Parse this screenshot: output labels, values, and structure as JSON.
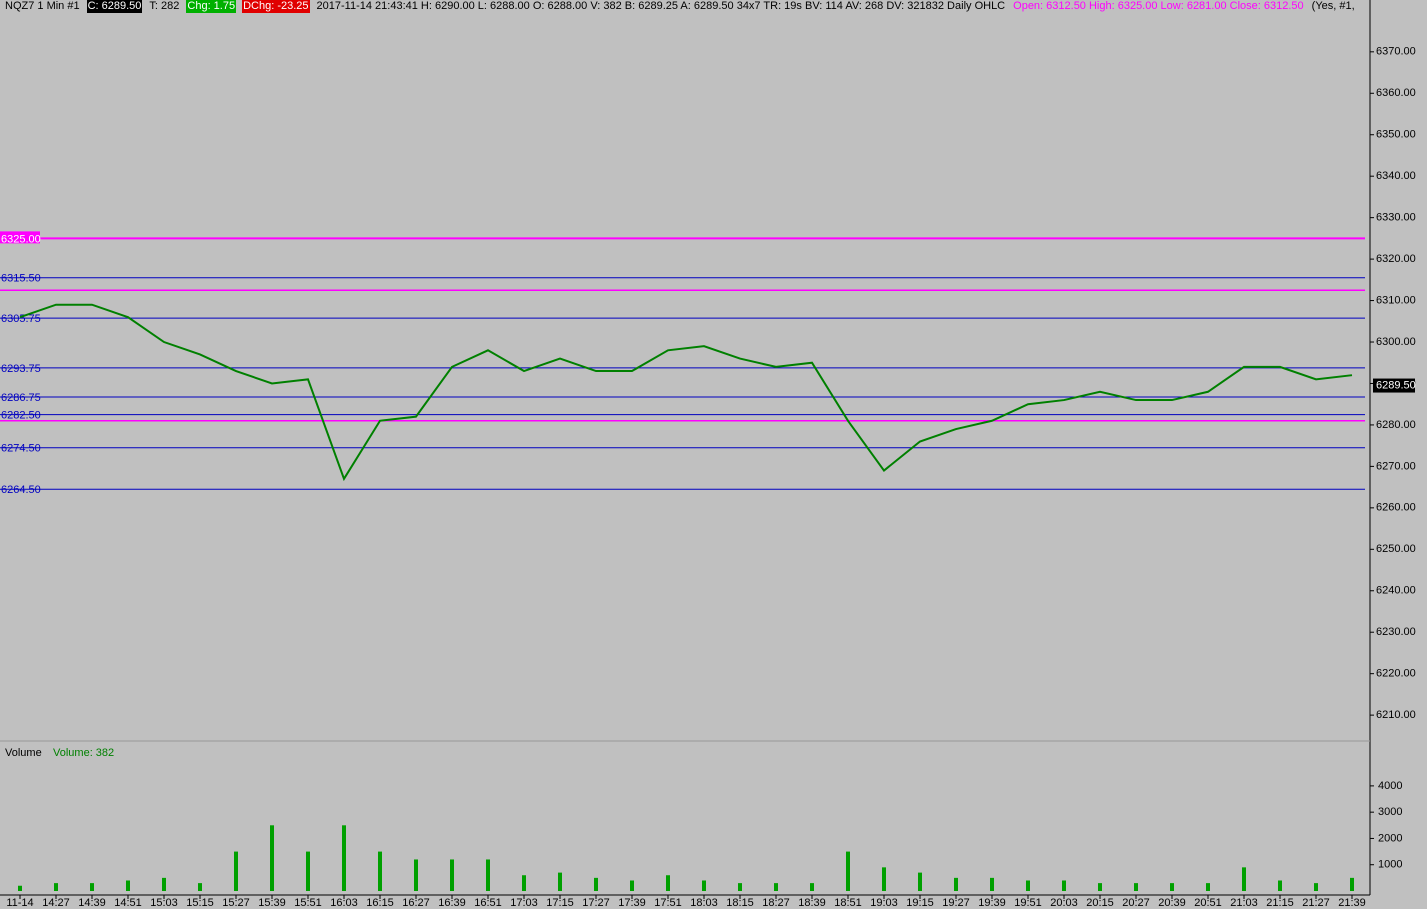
{
  "header": {
    "items": [
      {
        "text": "NQZ7  1 Min  #1",
        "style": "plain"
      },
      {
        "text": "C: 6289.50",
        "style": "black"
      },
      {
        "text": "T: 282",
        "style": "plain"
      },
      {
        "text": "Chg: 1.75",
        "style": "green"
      },
      {
        "text": "DChg: -23.25",
        "style": "red"
      },
      {
        "text": "2017-11-14 21:43:41 H: 6290.00 L: 6288.00 O: 6288.00 V: 382 B: 6289.25 A: 6289.50 34x7 TR: 19s BV: 114 AV: 268 DV: 321832  Daily OHLC",
        "style": "plain"
      },
      {
        "text": "Open: 6312.50  High: 6325.00  Low: 6281.00  Close: 6312.50",
        "style": "magenta"
      },
      {
        "text": "(Yes, #1,",
        "style": "plain"
      }
    ]
  },
  "chart_data": [
    {
      "type": "line",
      "categories": [
        "11-14",
        "14:27",
        "14:39",
        "14:51",
        "15:03",
        "15:15",
        "15:27",
        "15:39",
        "15:51",
        "16:03",
        "16:15",
        "16:27",
        "16:39",
        "16:51",
        "17:03",
        "17:15",
        "17:27",
        "17:39",
        "17:51",
        "18:03",
        "18:15",
        "18:27",
        "18:39",
        "18:51",
        "19:03",
        "19:15",
        "19:27",
        "19:39",
        "19:51",
        "20:03",
        "20:15",
        "20:27",
        "20:39",
        "20:51",
        "21:03",
        "21:15",
        "21:27",
        "21:39"
      ],
      "series": [
        {
          "name": "NQZ7",
          "color": "#008000",
          "values": [
            6306,
            6309,
            6309,
            6306,
            6300,
            6297,
            6293,
            6290,
            6291,
            6267,
            6281,
            6282,
            6294,
            6298,
            6293,
            6296,
            6293,
            6293,
            6298,
            6299,
            6296,
            6294,
            6295,
            6281,
            6269,
            6276,
            6279,
            6281,
            6285,
            6286,
            6288,
            6286,
            6286,
            6288,
            6294,
            6294,
            6291,
            6292
          ]
        }
      ],
      "ylim": [
        6204,
        6382.5
      ],
      "yticks": [
        {
          "value": 6370,
          "label": "6370.00"
        },
        {
          "value": 6360,
          "label": "6360.00"
        },
        {
          "value": 6350,
          "label": "6350.00"
        },
        {
          "value": 6340,
          "label": "6340.00"
        },
        {
          "value": 6330,
          "label": "6330.00"
        },
        {
          "value": 6320,
          "label": "6320.00"
        },
        {
          "value": 6310,
          "label": "6310.00"
        },
        {
          "value": 6300,
          "label": "6300.00"
        },
        {
          "value": 6290,
          "label": "6290.00"
        },
        {
          "value": 6280,
          "label": "6280.00"
        },
        {
          "value": 6270,
          "label": "6270.00"
        },
        {
          "value": 6260,
          "label": "6260.00"
        },
        {
          "value": 6250,
          "label": "6250.00"
        },
        {
          "value": 6240,
          "label": "6240.00"
        },
        {
          "value": 6230,
          "label": "6230.00"
        },
        {
          "value": 6220,
          "label": "6220.00"
        },
        {
          "value": 6210,
          "label": "6210.00"
        }
      ],
      "levels": [
        {
          "value": 6325,
          "label": "6325.00",
          "color": "#ff00ff"
        },
        {
          "value": 6315.5,
          "label": "6315.50",
          "color": "#0000c0"
        },
        {
          "value": 6305.75,
          "label": "6305.75",
          "color": "#0000c0"
        },
        {
          "value": 6293.75,
          "label": "6293.75",
          "color": "#0000c0"
        },
        {
          "value": 6286.75,
          "label": "6286.75",
          "color": "#0000c0"
        },
        {
          "value": 6282.5,
          "label": "6282.50",
          "color": "#0000c0"
        },
        {
          "value": 6274.5,
          "label": "6274.50",
          "color": "#0000c0"
        },
        {
          "value": 6264.5,
          "label": "6264.50",
          "color": "#0000c0"
        }
      ],
      "reference_lines": [
        6312.5,
        6281
      ],
      "reference_color": "#ff00ff",
      "last_price": {
        "value": 6289.5,
        "label": "6289.50"
      }
    },
    {
      "type": "bar",
      "title": "Volume",
      "subtitle": "Volume: 382",
      "color": "#00a000",
      "values": [
        200,
        300,
        300,
        400,
        500,
        300,
        1500,
        2500,
        1500,
        2500,
        1500,
        1200,
        1200,
        1200,
        600,
        700,
        500,
        400,
        600,
        400,
        300,
        300,
        300,
        1500,
        900,
        700,
        500,
        500,
        400,
        400,
        300,
        300,
        300,
        300,
        900,
        400,
        300,
        500
      ],
      "ylim": [
        0,
        5670
      ],
      "yticks": [
        1000,
        2000,
        3000,
        4000
      ]
    }
  ]
}
